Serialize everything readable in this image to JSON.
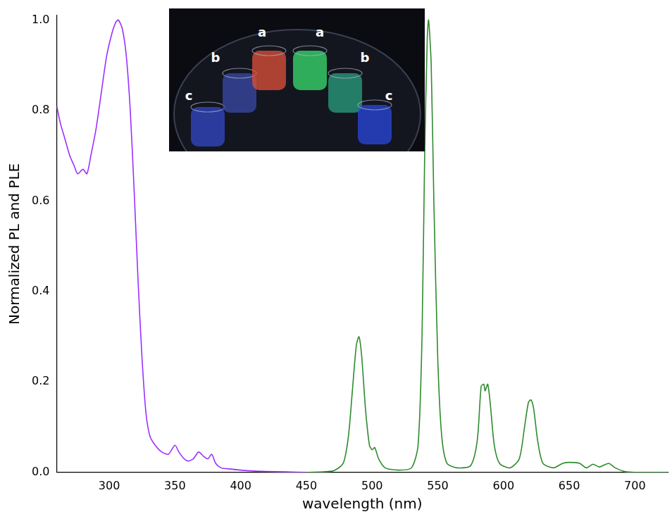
{
  "chart_data": {
    "type": "line",
    "x_label": "wavelength (nm)",
    "y_label": "Normalized PL and PLE",
    "xlim": [
      260,
      725
    ],
    "ylim": [
      0,
      1.01
    ],
    "xticks": [
      300,
      350,
      400,
      450,
      500,
      550,
      600,
      650,
      700
    ],
    "yticks": [
      {
        "value": 0,
        "label": "0.0"
      },
      {
        "value": 0.2,
        "label": "0.2"
      },
      {
        "value": 0.4,
        "label": "0.4"
      },
      {
        "value": 0.6,
        "label": "0.6"
      },
      {
        "value": 0.8,
        "label": "0.8"
      },
      {
        "value": 1,
        "label": "1.0"
      }
    ],
    "grid": false,
    "annotations": [
      "c",
      "b",
      "a",
      "a",
      "b",
      "c"
    ],
    "series": [
      {
        "color": "#9b30ff",
        "x": [
          260,
          263,
          266,
          270,
          273,
          276,
          280,
          283,
          286,
          290,
          294,
          298,
          302,
          305,
          307,
          310,
          313,
          316,
          319,
          322,
          325,
          328,
          331,
          335,
          340,
          345,
          350,
          353,
          357,
          360,
          364,
          368,
          372,
          375,
          378,
          381,
          385,
          390,
          400,
          410,
          420,
          435,
          450
        ],
        "values": [
          0.81,
          0.77,
          0.74,
          0.7,
          0.68,
          0.66,
          0.67,
          0.66,
          0.7,
          0.76,
          0.84,
          0.92,
          0.97,
          0.995,
          1.0,
          0.98,
          0.92,
          0.8,
          0.62,
          0.42,
          0.25,
          0.13,
          0.08,
          0.06,
          0.045,
          0.04,
          0.06,
          0.045,
          0.03,
          0.025,
          0.03,
          0.045,
          0.035,
          0.03,
          0.04,
          0.02,
          0.01,
          0.008,
          0.005,
          0.003,
          0.002,
          0.001,
          0
        ]
      },
      {
        "color": "#2e8b2e",
        "x": [
          450,
          470,
          478,
          482,
          485,
          488,
          490,
          492,
          495,
          498,
          500,
          502,
          505,
          510,
          520,
          530,
          535,
          538,
          540,
          542,
          543,
          545,
          547,
          550,
          553,
          557,
          565,
          575,
          580,
          583,
          585,
          586,
          588,
          590,
          593,
          597,
          605,
          612,
          616,
          619,
          621,
          623,
          626,
          630,
          638,
          645,
          650,
          658,
          663,
          668,
          673,
          680,
          685,
          692,
          700,
          725
        ],
        "values": [
          0,
          0.003,
          0.02,
          0.08,
          0.18,
          0.28,
          0.3,
          0.26,
          0.14,
          0.06,
          0.05,
          0.055,
          0.03,
          0.01,
          0.005,
          0.01,
          0.06,
          0.3,
          0.7,
          0.96,
          1.0,
          0.9,
          0.6,
          0.25,
          0.08,
          0.02,
          0.01,
          0.015,
          0.07,
          0.19,
          0.195,
          0.18,
          0.195,
          0.15,
          0.06,
          0.02,
          0.01,
          0.03,
          0.1,
          0.155,
          0.16,
          0.14,
          0.07,
          0.02,
          0.01,
          0.02,
          0.022,
          0.02,
          0.01,
          0.018,
          0.012,
          0.02,
          0.01,
          0.002,
          0,
          0
        ]
      }
    ]
  }
}
